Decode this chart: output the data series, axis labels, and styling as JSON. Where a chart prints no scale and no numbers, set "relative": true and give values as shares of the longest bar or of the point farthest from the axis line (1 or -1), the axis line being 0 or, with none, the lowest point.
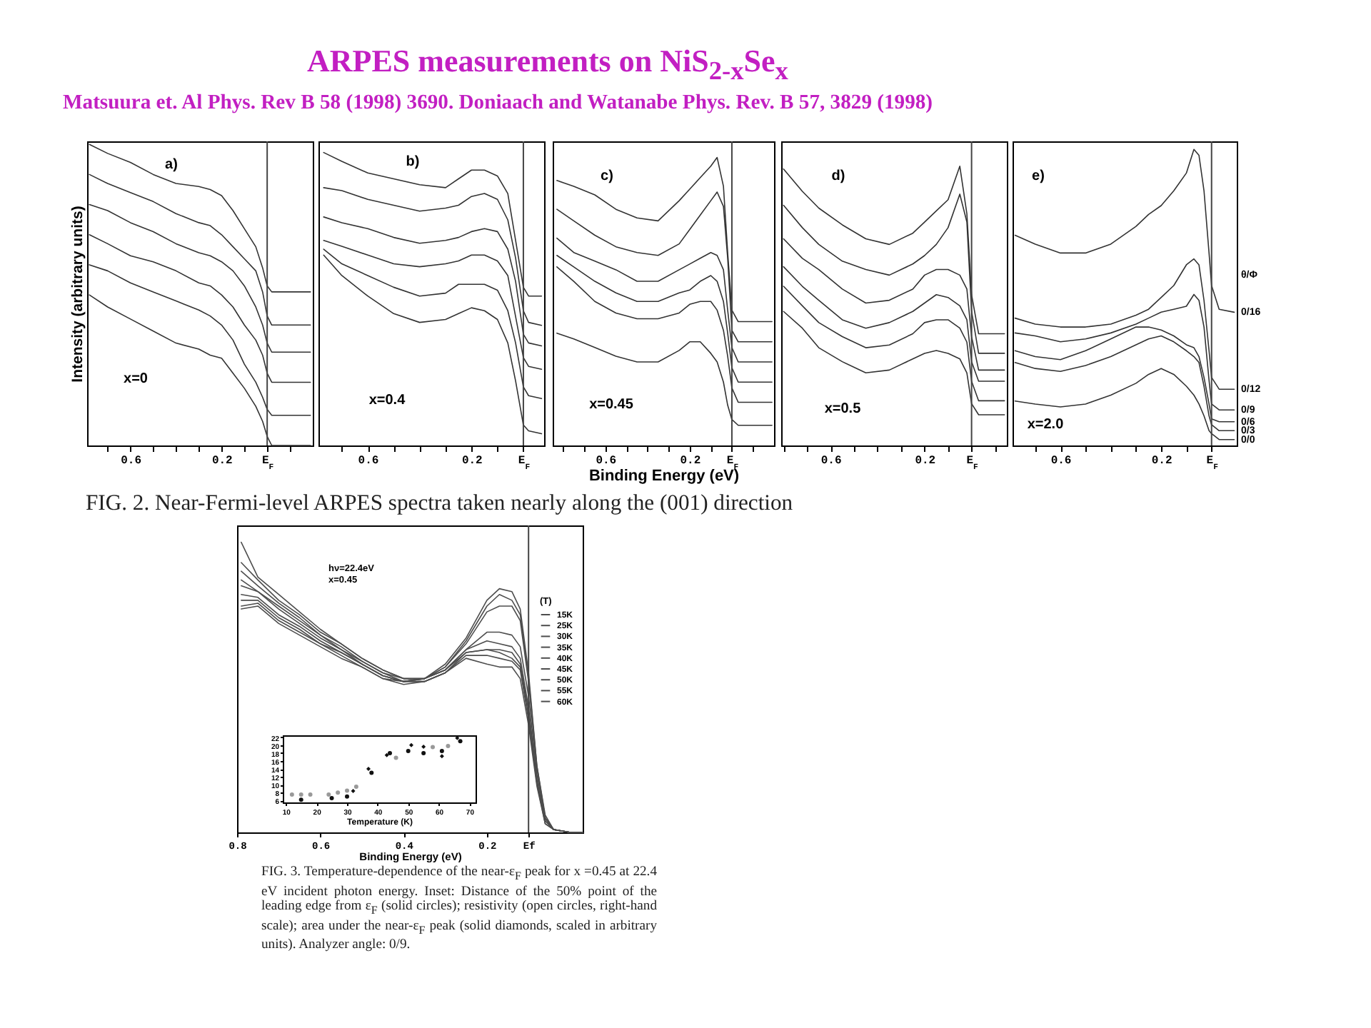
{
  "chart_data": [
    {
      "type": "other",
      "title": "ARPES measurements on NiS$_{2-x}$Se$_{x}$",
      "subtitle": "Matsuura et. Al Phys. Rev B 58 (1998) 3690. Doniaach and Watanabe Phys. Rev. B 57, 3829 (1998)"
    },
    {
      "type": "line",
      "relative": true,
      "ylabel": "Intensity (arbitrary units)",
      "annotations": [
        "a)",
        "x=0"
      ],
      "xlim": [
        0.79,
        -0.2
      ],
      "xticks": [
        {
          "value": 0.7,
          "label": null
        },
        0.6,
        {
          "value": 0.5,
          "label": null
        },
        {
          "value": 0.4,
          "label": null
        },
        {
          "value": 0.3,
          "label": null
        },
        0.2,
        {
          "value": 0.1,
          "label": null
        },
        {
          "value": 0,
          "label": "E$_{F}$"
        },
        {
          "value": -0.1,
          "label": null
        }
      ],
      "ref_lines": [
        {
          "axis": "x",
          "value": 0
        }
      ],
      "x": [
        0.78,
        0.7,
        0.6,
        0.5,
        0.4,
        0.3,
        0.25,
        0.2,
        0.15,
        0.1,
        0.05,
        0.02,
        0,
        -0.02,
        -0.1,
        -0.19
      ],
      "series": [
        {
          "color": "#333333",
          "values": [
            1,
            0.97,
            0.94,
            0.9,
            0.87,
            0.86,
            0.85,
            0.83,
            0.78,
            0.72,
            0.66,
            0.59,
            0.53,
            0.51,
            0.51,
            0.51
          ]
        },
        {
          "color": "#333333",
          "values": [
            0.9,
            0.87,
            0.84,
            0.81,
            0.77,
            0.74,
            0.73,
            0.7,
            0.66,
            0.62,
            0.58,
            0.51,
            0.43,
            0.4,
            0.4,
            0.4
          ]
        },
        {
          "color": "#333333",
          "values": [
            0.8,
            0.78,
            0.74,
            0.71,
            0.67,
            0.64,
            0.63,
            0.61,
            0.58,
            0.53,
            0.46,
            0.4,
            0.34,
            0.31,
            0.31,
            0.31
          ]
        },
        {
          "color": "#333333",
          "values": [
            0.7,
            0.67,
            0.63,
            0.61,
            0.58,
            0.54,
            0.53,
            0.5,
            0.46,
            0.4,
            0.35,
            0.3,
            0.24,
            0.21,
            0.21,
            0.21
          ]
        },
        {
          "color": "#333333",
          "values": [
            0.6,
            0.58,
            0.54,
            0.51,
            0.48,
            0.45,
            0.43,
            0.4,
            0.35,
            0.27,
            0.21,
            0.16,
            0.12,
            0.1,
            0.1,
            0.1
          ]
        },
        {
          "color": "#333333",
          "values": [
            0.5,
            0.46,
            0.42,
            0.38,
            0.34,
            0.32,
            0.3,
            0.29,
            0.24,
            0.19,
            0.13,
            0.08,
            0.03,
            0,
            0,
            0
          ]
        }
      ]
    },
    {
      "type": "line",
      "relative": true,
      "annotations": [
        "b)",
        "x=0.4"
      ],
      "xlim": [
        0.79,
        -0.08
      ],
      "xticks": [
        {
          "value": 0.7,
          "label": null
        },
        0.6,
        {
          "value": 0.5,
          "label": null
        },
        {
          "value": 0.4,
          "label": null
        },
        {
          "value": 0.3,
          "label": null
        },
        0.2,
        {
          "value": 0.1,
          "label": null
        },
        {
          "value": 0,
          "label": "E$_{F}$"
        }
      ],
      "ref_lines": [
        {
          "axis": "x",
          "value": 0
        }
      ],
      "x": [
        0.77,
        0.7,
        0.6,
        0.5,
        0.4,
        0.3,
        0.25,
        0.2,
        0.15,
        0.1,
        0.06,
        0.03,
        0,
        -0.02,
        -0.07
      ],
      "series": [
        {
          "color": "#333333",
          "values": [
            1,
            0.97,
            0.93,
            0.91,
            0.89,
            0.88,
            0.91,
            0.94,
            0.94,
            0.92,
            0.86,
            0.7,
            0.54,
            0.51,
            0.51
          ]
        },
        {
          "color": "#333333",
          "values": [
            0.88,
            0.87,
            0.84,
            0.82,
            0.8,
            0.81,
            0.82,
            0.85,
            0.86,
            0.84,
            0.77,
            0.64,
            0.46,
            0.42,
            0.41
          ]
        },
        {
          "color": "#333333",
          "values": [
            0.78,
            0.76,
            0.74,
            0.71,
            0.69,
            0.7,
            0.71,
            0.73,
            0.74,
            0.73,
            0.67,
            0.56,
            0.38,
            0.35,
            0.34
          ]
        },
        {
          "color": "#333333",
          "values": [
            0.7,
            0.68,
            0.65,
            0.62,
            0.61,
            0.62,
            0.63,
            0.65,
            0.65,
            0.63,
            0.58,
            0.44,
            0.3,
            0.27,
            0.26
          ]
        },
        {
          "color": "#333333",
          "values": [
            0.67,
            0.62,
            0.58,
            0.54,
            0.51,
            0.52,
            0.55,
            0.55,
            0.55,
            0.53,
            0.46,
            0.35,
            0.2,
            0.17,
            0.16
          ]
        },
        {
          "color": "#333333",
          "values": [
            0.65,
            0.58,
            0.51,
            0.45,
            0.42,
            0.43,
            0.45,
            0.47,
            0.46,
            0.43,
            0.35,
            0.22,
            0.07,
            0.05,
            0.04
          ]
        }
      ]
    },
    {
      "type": "line",
      "relative": true,
      "xlabel": "Binding Energy (eV)",
      "annotations": [
        "c)",
        "x=0.45",
        "FIG. 2. Near-Fermi-level ARPES spectra taken nearly along the (001) direction"
      ],
      "xlim": [
        0.85,
        -0.2
      ],
      "xticks": [
        {
          "value": 0.8,
          "label": null
        },
        {
          "value": 0.7,
          "label": null
        },
        0.6,
        {
          "value": 0.5,
          "label": null
        },
        {
          "value": 0.4,
          "label": null
        },
        {
          "value": 0.3,
          "label": null
        },
        0.2,
        {
          "value": 0.1,
          "label": null
        },
        {
          "value": 0,
          "label": "E$_{F}$"
        },
        {
          "value": -0.1,
          "label": null
        }
      ],
      "ref_lines": [
        {
          "axis": "x",
          "value": 0
        }
      ],
      "x": [
        0.83,
        0.75,
        0.65,
        0.55,
        0.45,
        0.35,
        0.25,
        0.2,
        0.15,
        0.1,
        0.07,
        0.04,
        0.02,
        0,
        -0.03,
        -0.1,
        -0.19
      ],
      "series": [
        {
          "color": "#333333",
          "values": [
            0.92,
            0.9,
            0.87,
            0.82,
            0.79,
            0.78,
            0.85,
            0.89,
            0.93,
            0.97,
            1,
            0.9,
            0.67,
            0.47,
            0.43,
            0.43,
            0.43
          ]
        },
        {
          "color": "#333333",
          "values": [
            0.82,
            0.78,
            0.73,
            0.69,
            0.67,
            0.66,
            0.7,
            0.75,
            0.8,
            0.85,
            0.88,
            0.83,
            0.65,
            0.4,
            0.36,
            0.36,
            0.36
          ]
        },
        {
          "color": "#333333",
          "values": [
            0.72,
            0.67,
            0.64,
            0.61,
            0.57,
            0.57,
            0.61,
            0.63,
            0.65,
            0.67,
            0.66,
            0.61,
            0.47,
            0.34,
            0.29,
            0.29,
            0.29
          ]
        },
        {
          "color": "#333333",
          "values": [
            0.66,
            0.62,
            0.57,
            0.53,
            0.5,
            0.5,
            0.53,
            0.54,
            0.57,
            0.59,
            0.57,
            0.5,
            0.39,
            0.27,
            0.22,
            0.22,
            0.22
          ]
        },
        {
          "color": "#333333",
          "values": [
            0.62,
            0.57,
            0.5,
            0.46,
            0.44,
            0.44,
            0.46,
            0.49,
            0.5,
            0.5,
            0.47,
            0.4,
            0.31,
            0.2,
            0.15,
            0.15,
            0.15
          ]
        },
        {
          "color": "#333333",
          "values": [
            0.39,
            0.37,
            0.34,
            0.31,
            0.29,
            0.29,
            0.33,
            0.36,
            0.36,
            0.32,
            0.29,
            0.22,
            0.14,
            0.09,
            0.07,
            0.07,
            0.07
          ]
        }
      ]
    },
    {
      "type": "line",
      "relative": true,
      "annotations": [
        "d)",
        "x=0.5"
      ],
      "xlim": [
        0.81,
        -0.15
      ],
      "xticks": [
        {
          "value": 0.8,
          "label": null
        },
        {
          "value": 0.7,
          "label": null
        },
        0.6,
        {
          "value": 0.5,
          "label": null
        },
        {
          "value": 0.4,
          "label": null
        },
        {
          "value": 0.3,
          "label": null
        },
        0.2,
        {
          "value": 0.1,
          "label": null
        },
        {
          "value": 0,
          "label": "E$_{F}$"
        },
        {
          "value": -0.1,
          "label": null
        }
      ],
      "ref_lines": [
        {
          "axis": "x",
          "value": 0
        }
      ],
      "x": [
        0.8,
        0.72,
        0.65,
        0.55,
        0.45,
        0.35,
        0.25,
        0.2,
        0.15,
        0.1,
        0.05,
        0.02,
        0,
        -0.03,
        -0.14
      ],
      "series": [
        {
          "color": "#333333",
          "values": [
            0.99,
            0.91,
            0.85,
            0.79,
            0.74,
            0.72,
            0.76,
            0.8,
            0.84,
            0.88,
            1,
            0.83,
            0.54,
            0.4,
            0.4
          ]
        },
        {
          "color": "#333333",
          "values": [
            0.86,
            0.78,
            0.72,
            0.66,
            0.63,
            0.61,
            0.65,
            0.68,
            0.72,
            0.78,
            0.9,
            0.8,
            0.48,
            0.33,
            0.33
          ]
        },
        {
          "color": "#333333",
          "values": [
            0.74,
            0.67,
            0.63,
            0.56,
            0.51,
            0.52,
            0.56,
            0.61,
            0.63,
            0.63,
            0.61,
            0.56,
            0.39,
            0.27,
            0.27
          ]
        },
        {
          "color": "#333333",
          "values": [
            0.64,
            0.57,
            0.52,
            0.45,
            0.42,
            0.44,
            0.48,
            0.51,
            0.54,
            0.53,
            0.5,
            0.45,
            0.3,
            0.23,
            0.23
          ]
        },
        {
          "color": "#333333",
          "values": [
            0.57,
            0.5,
            0.44,
            0.39,
            0.35,
            0.36,
            0.4,
            0.44,
            0.45,
            0.45,
            0.42,
            0.37,
            0.23,
            0.16,
            0.16
          ]
        },
        {
          "color": "#333333",
          "values": [
            0.48,
            0.42,
            0.35,
            0.3,
            0.26,
            0.27,
            0.31,
            0.33,
            0.34,
            0.33,
            0.31,
            0.26,
            0.15,
            0.11,
            0.11
          ]
        }
      ]
    },
    {
      "type": "line",
      "relative": true,
      "legend_title": "θ/Φ",
      "annotations": [
        "e)",
        "x=2.0"
      ],
      "xlim": [
        0.79,
        -0.1
      ],
      "xticks": [
        {
          "value": 0.7,
          "label": null
        },
        0.6,
        {
          "value": 0.5,
          "label": null
        },
        {
          "value": 0.4,
          "label": null
        },
        {
          "value": 0.3,
          "label": null
        },
        0.2,
        {
          "value": 0.1,
          "label": null
        },
        {
          "value": 0,
          "label": "E$_{F}$"
        }
      ],
      "ref_lines": [
        {
          "axis": "x",
          "value": 0
        }
      ],
      "x": [
        0.78,
        0.7,
        0.6,
        0.5,
        0.4,
        0.3,
        0.25,
        0.2,
        0.15,
        0.1,
        0.07,
        0.05,
        0.03,
        0.01,
        0,
        -0.03,
        -0.09
      ],
      "series": [
        {
          "name": "0/16",
          "color": "#333333",
          "values": [
            0.71,
            0.68,
            0.65,
            0.65,
            0.68,
            0.74,
            0.78,
            0.81,
            0.86,
            0.92,
            1,
            0.98,
            0.86,
            0.65,
            0.54,
            0.46,
            0.45
          ]
        },
        {
          "name": "0/12",
          "color": "#333333",
          "values": [
            0.43,
            0.41,
            0.4,
            0.4,
            0.41,
            0.44,
            0.46,
            0.5,
            0.54,
            0.61,
            0.63,
            0.61,
            0.49,
            0.32,
            0.23,
            0.19,
            0.19
          ]
        },
        {
          "name": "0/9",
          "color": "#333333",
          "values": [
            0.38,
            0.37,
            0.35,
            0.36,
            0.38,
            0.41,
            0.43,
            0.45,
            0.46,
            0.47,
            0.51,
            0.49,
            0.4,
            0.22,
            0.14,
            0.12,
            0.12
          ]
        },
        {
          "name": "0/6",
          "color": "#333333",
          "values": [
            0.32,
            0.3,
            0.29,
            0.32,
            0.36,
            0.4,
            0.4,
            0.39,
            0.37,
            0.34,
            0.33,
            0.3,
            0.23,
            0.14,
            0.09,
            0.08,
            0.08
          ]
        },
        {
          "name": "0/3",
          "color": "#333333",
          "values": [
            0.28,
            0.26,
            0.25,
            0.27,
            0.3,
            0.34,
            0.36,
            0.37,
            0.35,
            0.32,
            0.3,
            0.28,
            0.2,
            0.1,
            0.07,
            0.05,
            0.05
          ]
        },
        {
          "name": "0/0",
          "color": "#333333",
          "values": [
            0.15,
            0.14,
            0.13,
            0.14,
            0.17,
            0.21,
            0.24,
            0.26,
            0.24,
            0.2,
            0.17,
            0.14,
            0.1,
            0.05,
            0.04,
            0.02,
            0.02
          ]
        }
      ]
    },
    {
      "type": "line",
      "relative": true,
      "xlabel": "Binding Energy (eV)",
      "legend": "top right",
      "legend_title": "(T)",
      "annotations": [
        "hν=22.4eV",
        "x=0.45",
        "FIG. 3. Temperature-dependence of the near-ε$_{F}$ peak for x =0.45 at 22.4 eV incident photon energy. Inset: Distance of the 50% point of the leading edge from ε$_{F}$ (solid circles); resistivity (open circles, right-hand scale); area under the near-ε$_{F}$ peak (solid diamonds, scaled in arbitrary units). Analyzer angle: 0/9."
      ],
      "xlim": [
        0.8,
        -0.03
      ],
      "xticks": [
        0.8,
        0.6,
        0.4,
        0.2,
        {
          "value": 0.1,
          "label": "Ef"
        }
      ],
      "ref_lines": [
        {
          "axis": "x",
          "value": 0.1
        }
      ],
      "x": [
        0.79,
        0.75,
        0.7,
        0.65,
        0.6,
        0.55,
        0.5,
        0.45,
        0.4,
        0.35,
        0.3,
        0.25,
        0.2,
        0.17,
        0.14,
        0.12,
        0.1,
        0.08,
        0.06,
        0.04,
        0,
        -0.03
      ],
      "series": [
        {
          "name": "15K",
          "color": "#4d4d4d",
          "values": [
            1,
            0.88,
            0.82,
            0.76,
            0.7,
            0.65,
            0.6,
            0.56,
            0.53,
            0.53,
            0.58,
            0.67,
            0.8,
            0.84,
            0.83,
            0.77,
            0.55,
            0.23,
            0.06,
            0.01,
            0,
            0
          ]
        },
        {
          "name": "25K",
          "color": "#4d4d4d",
          "values": [
            0.93,
            0.87,
            0.8,
            0.75,
            0.69,
            0.65,
            0.6,
            0.56,
            0.53,
            0.53,
            0.57,
            0.66,
            0.78,
            0.82,
            0.8,
            0.75,
            0.53,
            0.23,
            0.05,
            0.01,
            0,
            0
          ]
        },
        {
          "name": "30K",
          "color": "#4d4d4d",
          "values": [
            0.9,
            0.85,
            0.79,
            0.74,
            0.68,
            0.64,
            0.59,
            0.55,
            0.53,
            0.53,
            0.57,
            0.65,
            0.76,
            0.78,
            0.78,
            0.73,
            0.52,
            0.22,
            0.05,
            0.01,
            0,
            0
          ]
        },
        {
          "name": "35K",
          "color": "#4d4d4d",
          "values": [
            0.87,
            0.83,
            0.78,
            0.73,
            0.68,
            0.63,
            0.59,
            0.55,
            0.52,
            0.53,
            0.56,
            0.63,
            0.69,
            0.69,
            0.68,
            0.64,
            0.47,
            0.2,
            0.05,
            0.01,
            0,
            0
          ]
        },
        {
          "name": "40K",
          "color": "#4d4d4d",
          "values": [
            0.85,
            0.83,
            0.77,
            0.72,
            0.67,
            0.63,
            0.58,
            0.54,
            0.52,
            0.53,
            0.56,
            0.63,
            0.66,
            0.65,
            0.64,
            0.6,
            0.43,
            0.18,
            0.04,
            0.01,
            0,
            0
          ]
        },
        {
          "name": "45K",
          "color": "#4d4d4d",
          "values": [
            0.82,
            0.81,
            0.75,
            0.71,
            0.66,
            0.62,
            0.58,
            0.54,
            0.52,
            0.53,
            0.56,
            0.62,
            0.63,
            0.63,
            0.62,
            0.58,
            0.42,
            0.18,
            0.04,
            0.01,
            0,
            0
          ]
        },
        {
          "name": "50K",
          "color": "#4d4d4d",
          "values": [
            0.8,
            0.8,
            0.74,
            0.7,
            0.65,
            0.62,
            0.58,
            0.54,
            0.52,
            0.52,
            0.55,
            0.62,
            0.63,
            0.62,
            0.6,
            0.57,
            0.4,
            0.17,
            0.04,
            0.01,
            0,
            0
          ]
        },
        {
          "name": "55K",
          "color": "#4d4d4d",
          "values": [
            0.78,
            0.79,
            0.73,
            0.69,
            0.65,
            0.61,
            0.57,
            0.53,
            0.52,
            0.52,
            0.55,
            0.61,
            0.61,
            0.6,
            0.59,
            0.56,
            0.39,
            0.17,
            0.03,
            0.01,
            0,
            0
          ]
        },
        {
          "name": "60K",
          "color": "#4d4d4d",
          "values": [
            0.77,
            0.78,
            0.72,
            0.68,
            0.64,
            0.6,
            0.57,
            0.53,
            0.51,
            0.52,
            0.55,
            0.6,
            0.58,
            0.57,
            0.57,
            0.53,
            0.37,
            0.16,
            0.03,
            0.01,
            0,
            0
          ]
        }
      ]
    },
    {
      "type": "scatter",
      "xlabel": "Temperature (K)",
      "xlim": [
        9,
        72
      ],
      "xticks": [
        10,
        20,
        30,
        40,
        50,
        60,
        70
      ],
      "ylim": [
        5.5,
        22.5
      ],
      "yticks": [
        6,
        8,
        10,
        12,
        14,
        16,
        18,
        20,
        22
      ],
      "series": [
        {
          "color": "#111111",
          "marker": "circle",
          "x": [
            15,
            25,
            30,
            38,
            44,
            50,
            55,
            61,
            67
          ],
          "values": [
            6.2,
            6.6,
            7,
            13,
            18,
            18.5,
            18,
            18.5,
            21
          ]
        },
        {
          "color": "#999999",
          "marker": "circle",
          "x": [
            12,
            15,
            18,
            24,
            27,
            30,
            33,
            46,
            58,
            63
          ],
          "values": [
            7.5,
            7.5,
            7.5,
            7.5,
            8,
            8.5,
            9.5,
            16.8,
            19.5,
            19.8
          ]
        },
        {
          "color": "#111111",
          "marker": "diamond",
          "x": [
            32,
            37,
            43,
            51,
            55,
            61,
            66
          ],
          "values": [
            8.4,
            14,
            17.5,
            20,
            19.6,
            17.2,
            21.8
          ]
        }
      ]
    }
  ]
}
